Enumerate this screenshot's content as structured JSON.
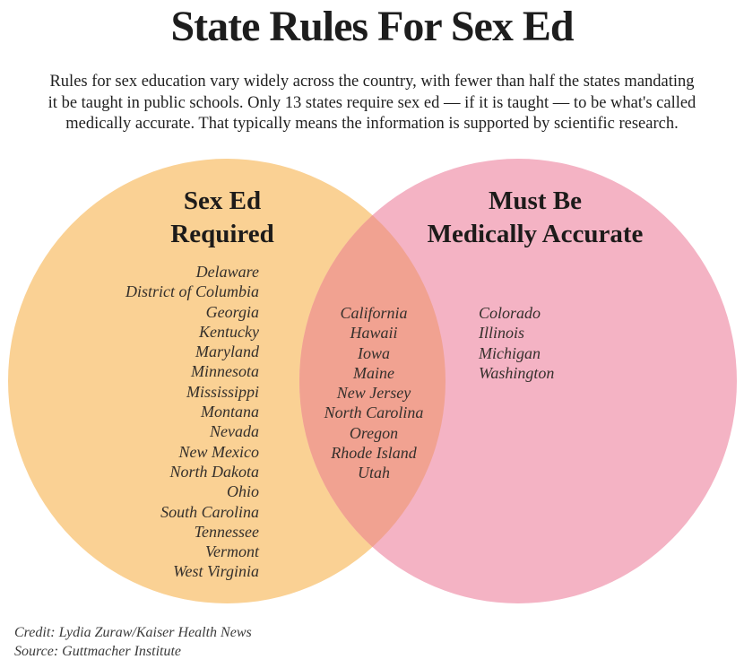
{
  "title": "State Rules For Sex Ed",
  "subtitle": {
    "lines": [
      "Rules for sex education vary widely across the country, with fewer than half the states mandating",
      "it be taught in public schools. Only 13 states require sex ed — if it is taught — to be what's called",
      "medically accurate. That typically means the information is supported by scientific research."
    ]
  },
  "colors": {
    "left_circle": "#FAD194",
    "right_circle": "#F4B3C4",
    "overlap": "#F1A291",
    "background": "#FFFFFF"
  },
  "venn": {
    "left": {
      "heading_line1": "Sex Ed",
      "heading_line2": "Required",
      "states": [
        "Delaware",
        "District of Columbia",
        "Georgia",
        "Kentucky",
        "Maryland",
        "Minnesota",
        "Mississippi",
        "Montana",
        "Nevada",
        "New Mexico",
        "North Dakota",
        "Ohio",
        "South Carolina",
        "Tennessee",
        "Vermont",
        "West Virginia"
      ]
    },
    "overlap": {
      "states": [
        "California",
        "Hawaii",
        "Iowa",
        "Maine",
        "New Jersey",
        "North Carolina",
        "Oregon",
        "Rhode Island",
        "Utah"
      ]
    },
    "right": {
      "heading_line1": "Must Be",
      "heading_line2": "Medically Accurate",
      "states": [
        "Colorado",
        "Illinois",
        "Michigan",
        "Washington"
      ]
    }
  },
  "credit": "Credit: Lydia Zuraw/Kaiser Health News",
  "source": "Source: Guttmacher Institute"
}
